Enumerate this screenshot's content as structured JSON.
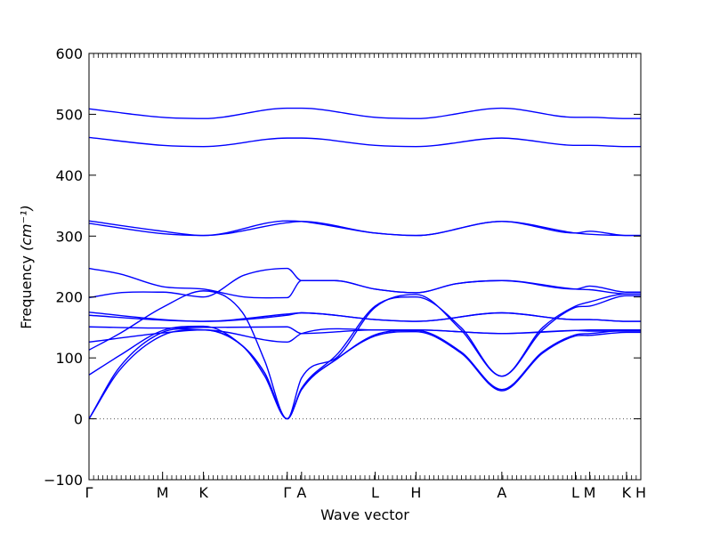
{
  "chart_data": {
    "type": "line",
    "title": "",
    "xlabel": "Wave vector",
    "ylabel_text": "Frequency ",
    "ylabel_unit": "(cm⁻¹)",
    "ylim": [
      -100,
      600
    ],
    "yticks": [
      -100,
      0,
      100,
      200,
      300,
      400,
      500,
      600
    ],
    "x_range": [
      0,
      27
    ],
    "high_symmetry_points": [
      {
        "label": "Γ",
        "x": 0
      },
      {
        "label": "M",
        "x": 3.6
      },
      {
        "label": "K",
        "x": 5.6
      },
      {
        "label": "Γ",
        "x": 9.7
      },
      {
        "label": "A",
        "x": 10.4
      },
      {
        "label": "L",
        "x": 14
      },
      {
        "label": "H",
        "x": 16
      },
      {
        "label": "A",
        "x": 20.2
      },
      {
        "label": "L",
        "x": 23.8
      },
      {
        "label": "M",
        "x": 24.5
      },
      {
        "label": "K",
        "x": 26.3
      },
      {
        "label": "H",
        "x": 27
      }
    ],
    "line_color": "#0000ff",
    "zero_line_color": "#555555",
    "series": [
      {
        "x": [
          0,
          3.6,
          5.6,
          9.7,
          10.4,
          14,
          16,
          20.2,
          23.8,
          24.5,
          26.3,
          27
        ],
        "values": [
          509,
          495,
          493,
          510,
          510,
          495,
          493,
          510,
          495,
          495,
          493,
          493
        ]
      },
      {
        "x": [
          0,
          3.6,
          5.6,
          9.7,
          10.4,
          14,
          16,
          20.2,
          23.8,
          24.5,
          26.3,
          27
        ],
        "values": [
          462,
          449,
          447,
          461,
          461,
          449,
          447,
          461,
          449,
          449,
          447,
          447
        ]
      },
      {
        "x": [
          0,
          3.6,
          5.6,
          9.7,
          10.4,
          14,
          16,
          20.2,
          23.8,
          24.5,
          26.3,
          27
        ],
        "values": [
          325,
          308,
          301,
          325,
          324,
          305,
          301,
          324,
          305,
          308,
          301,
          301
        ]
      },
      {
        "x": [
          0,
          3.6,
          5.6,
          9.7,
          10.4,
          14,
          16,
          20.2,
          23.8,
          24.5,
          26.3,
          27
        ],
        "values": [
          321,
          304,
          301,
          322,
          324,
          305,
          301,
          324,
          305,
          303,
          301,
          301
        ]
      },
      {
        "x": [
          0,
          1.5,
          3.6,
          5.6,
          7.6,
          9.7,
          10.4,
          12,
          14,
          16,
          18,
          20.2,
          23.8,
          24.5,
          26.3,
          27
        ],
        "values": [
          247,
          238,
          217,
          213,
          200,
          199,
          227,
          227,
          213,
          207,
          222,
          227,
          213,
          218,
          208,
          208
        ]
      },
      {
        "x": [
          0,
          1.5,
          3.6,
          5.6,
          7.6,
          9.7,
          10.4,
          12,
          14,
          16,
          18,
          20.2,
          23.8,
          24.5,
          26.3,
          27
        ],
        "values": [
          199,
          207,
          208,
          200,
          236,
          247,
          227,
          227,
          213,
          207,
          222,
          227,
          213,
          212,
          205,
          205
        ]
      },
      {
        "x": [
          0,
          3.6,
          5.6,
          9.7,
          10.4,
          14,
          16,
          20.2,
          23.8,
          24.5,
          26.3,
          27
        ],
        "values": [
          175,
          163,
          160,
          172,
          174,
          163,
          160,
          174,
          163,
          163,
          160,
          160
        ]
      },
      {
        "x": [
          0,
          3.6,
          5.6,
          9.7,
          10.4,
          14,
          16,
          20.2,
          23.8,
          24.5,
          26.3,
          27
        ],
        "values": [
          170,
          162,
          160,
          170,
          174,
          163,
          160,
          174,
          163,
          163,
          160,
          160
        ]
      },
      {
        "x": [
          0,
          3.6,
          5.6,
          9.7,
          10.4,
          14,
          16,
          20.2,
          23.8,
          24.5,
          26.3,
          27
        ],
        "values": [
          151,
          149,
          150,
          151,
          140,
          146,
          146,
          140,
          145,
          146,
          146,
          146
        ]
      },
      {
        "x": [
          0,
          3.6,
          5.6,
          9.7,
          10.4,
          14,
          16,
          20.2,
          23.8,
          24.5,
          26.3,
          27
        ],
        "values": [
          126,
          141,
          146,
          126,
          140,
          146,
          146,
          140,
          145,
          144,
          144,
          144
        ]
      },
      {
        "x": [
          0,
          1.5,
          3.6,
          5.6,
          7.5,
          8.6,
          9.7,
          10.4,
          12.2,
          14,
          16,
          18.2,
          20.2,
          22.2,
          23.8,
          24.5,
          26.3,
          27
        ],
        "values": [
          113,
          140,
          183,
          210,
          175,
          95,
          0,
          50,
          108,
          185,
          200,
          150,
          70,
          150,
          185,
          192,
          205,
          205
        ]
      },
      {
        "x": [
          0,
          1.5,
          3.6,
          5.6,
          7.5,
          8.6,
          9.7,
          10.4,
          12.2,
          14,
          16,
          18.2,
          20.2,
          22.2,
          23.8,
          24.5,
          26.3,
          27
        ],
        "values": [
          72,
          104,
          145,
          152,
          120,
          75,
          0,
          67,
          103,
          183,
          204,
          146,
          70,
          146,
          183,
          185,
          202,
          202
        ]
      },
      {
        "x": [
          0,
          1.5,
          3.6,
          5.6,
          7.5,
          8.6,
          9.7,
          10.4,
          12.2,
          14,
          16,
          18.2,
          20.2,
          22.2,
          23.8,
          24.5,
          26.3,
          27
        ],
        "values": [
          0,
          85,
          142,
          146,
          120,
          75,
          0,
          48,
          100,
          138,
          145,
          110,
          48,
          110,
          138,
          140,
          145,
          145
        ]
      },
      {
        "x": [
          0,
          1.5,
          3.6,
          5.6,
          7.5,
          8.6,
          9.7,
          10.4,
          12.2,
          14,
          16,
          18.2,
          20.2,
          22.2,
          23.8,
          24.5,
          26.3,
          27
        ],
        "values": [
          0,
          80,
          137,
          146,
          120,
          70,
          0,
          48,
          100,
          136,
          143,
          108,
          46,
          108,
          136,
          137,
          142,
          142
        ]
      }
    ]
  }
}
